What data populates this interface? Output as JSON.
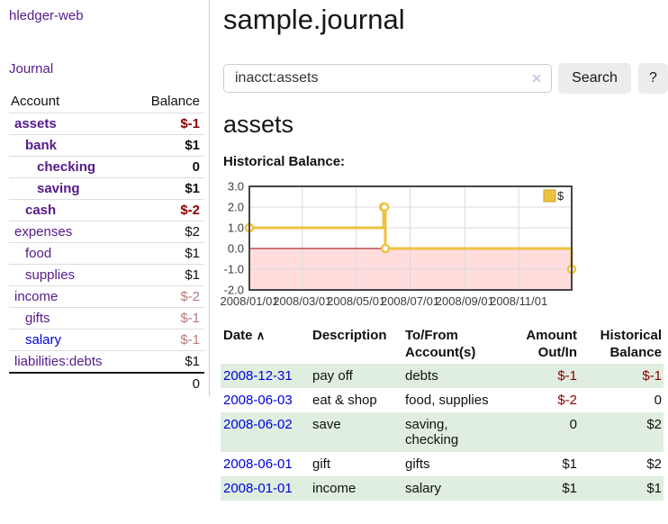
{
  "app": {
    "title": "hledger-web"
  },
  "sidebar": {
    "journal_label": "Journal",
    "accounts": {
      "headers": [
        "Account",
        "Balance"
      ],
      "rows": [
        {
          "account": "assets",
          "depth": 1,
          "bold": true,
          "link": "purple",
          "balance": "$-1",
          "color": "red"
        },
        {
          "account": "bank",
          "depth": 2,
          "bold": true,
          "link": "purple",
          "balance": "$1",
          "color": "black"
        },
        {
          "account": "checking",
          "depth": 3,
          "bold": true,
          "link": "purple",
          "balance": "0",
          "color": "black"
        },
        {
          "account": "saving",
          "depth": 3,
          "bold": true,
          "link": "purple",
          "balance": "$1",
          "color": "black"
        },
        {
          "account": "cash",
          "depth": 2,
          "bold": true,
          "link": "purple",
          "balance": "$-2",
          "color": "red"
        },
        {
          "account": "expenses",
          "depth": 1,
          "bold": false,
          "link": "purple",
          "balance": "$2",
          "color": "black"
        },
        {
          "account": "food",
          "depth": 2,
          "bold": false,
          "link": "purple",
          "balance": "$1",
          "color": "black"
        },
        {
          "account": "supplies",
          "depth": 2,
          "bold": false,
          "link": "purple",
          "balance": "$1",
          "color": "black"
        },
        {
          "account": "income",
          "depth": 1,
          "bold": false,
          "link": "purple",
          "balance": "$-2",
          "color": "rose"
        },
        {
          "account": "gifts",
          "depth": 2,
          "bold": false,
          "link": "purple",
          "balance": "$-1",
          "color": "rose"
        },
        {
          "account": "salary",
          "depth": 2,
          "bold": false,
          "link": "blue",
          "balance": "$-1",
          "color": "rose"
        },
        {
          "account": "liabilities:debts",
          "depth": 1,
          "bold": false,
          "link": "purple",
          "balance": "$1",
          "color": "black"
        }
      ],
      "total": "0"
    }
  },
  "main": {
    "title": "sample.journal",
    "account_heading": "assets"
  },
  "search": {
    "value": "inacct:assets",
    "clear_icon": "✕",
    "button_label": "Search",
    "help_label": "?"
  },
  "register": {
    "headers": {
      "date": "Date",
      "sort_icon": "∧",
      "description": "Description",
      "accounts": "To/From Account(s)",
      "amount": "Amount Out/In",
      "balance": "Historical Balance"
    },
    "rows": [
      {
        "date": "2008-12-31",
        "description": "pay off",
        "accounts": "debts",
        "amount": "$-1",
        "amount_color": "red",
        "balance": "$-1",
        "balance_color": "red"
      },
      {
        "date": "2008-06-03",
        "description": "eat & shop",
        "accounts": "food, supplies",
        "amount": "$-2",
        "amount_color": "red",
        "balance": "0",
        "balance_color": "black"
      },
      {
        "date": "2008-06-02",
        "description": "save",
        "accounts": "saving, checking",
        "amount": "0",
        "amount_color": "black",
        "balance": "$2",
        "balance_color": "black"
      },
      {
        "date": "2008-06-01",
        "description": "gift",
        "accounts": "gifts",
        "amount": "$1",
        "amount_color": "black",
        "balance": "$2",
        "balance_color": "black"
      },
      {
        "date": "2008-01-01",
        "description": "income",
        "accounts": "salary",
        "amount": "$1",
        "amount_color": "black",
        "balance": "$1",
        "balance_color": "black"
      }
    ]
  },
  "chart_data": {
    "type": "line",
    "step": true,
    "title": "Historical Balance:",
    "series": [
      {
        "name": "$",
        "color": "#edc240",
        "points": [
          [
            "2008-01-01",
            1
          ],
          [
            "2008-06-01",
            2
          ],
          [
            "2008-06-02",
            2
          ],
          [
            "2008-06-03",
            0
          ],
          [
            "2008-12-31",
            -1
          ]
        ]
      }
    ],
    "xlim": [
      "2008-01-01",
      "2008-12-31"
    ],
    "ylim": [
      -2,
      3
    ],
    "x_ticks": [
      "2008/01/01",
      "2008/03/01",
      "2008/05/01",
      "2008/07/01",
      "2008/09/01",
      "2008/11/01"
    ],
    "y_ticks": [
      "3.0",
      "2.0",
      "1.0",
      "0.0",
      "-1.0",
      "-2.0"
    ],
    "legend": {
      "label": "$",
      "position": "top-right"
    },
    "grid": true,
    "colors": {
      "negative_region": "#ffdddd",
      "zero_line": "#990000",
      "grid": "#d9d9d9",
      "border": "#444444",
      "legend_box_border": "#c9a227",
      "tick_text": "#3c3c3c"
    }
  },
  "colors": {
    "link_purple": "#551a8b",
    "link_blue": "#0000dd",
    "negative_strong": "#8b0000",
    "negative_muted": "#b87a7a",
    "row_stripe_green": "#dfeedf",
    "chart_series": "#edc240"
  }
}
